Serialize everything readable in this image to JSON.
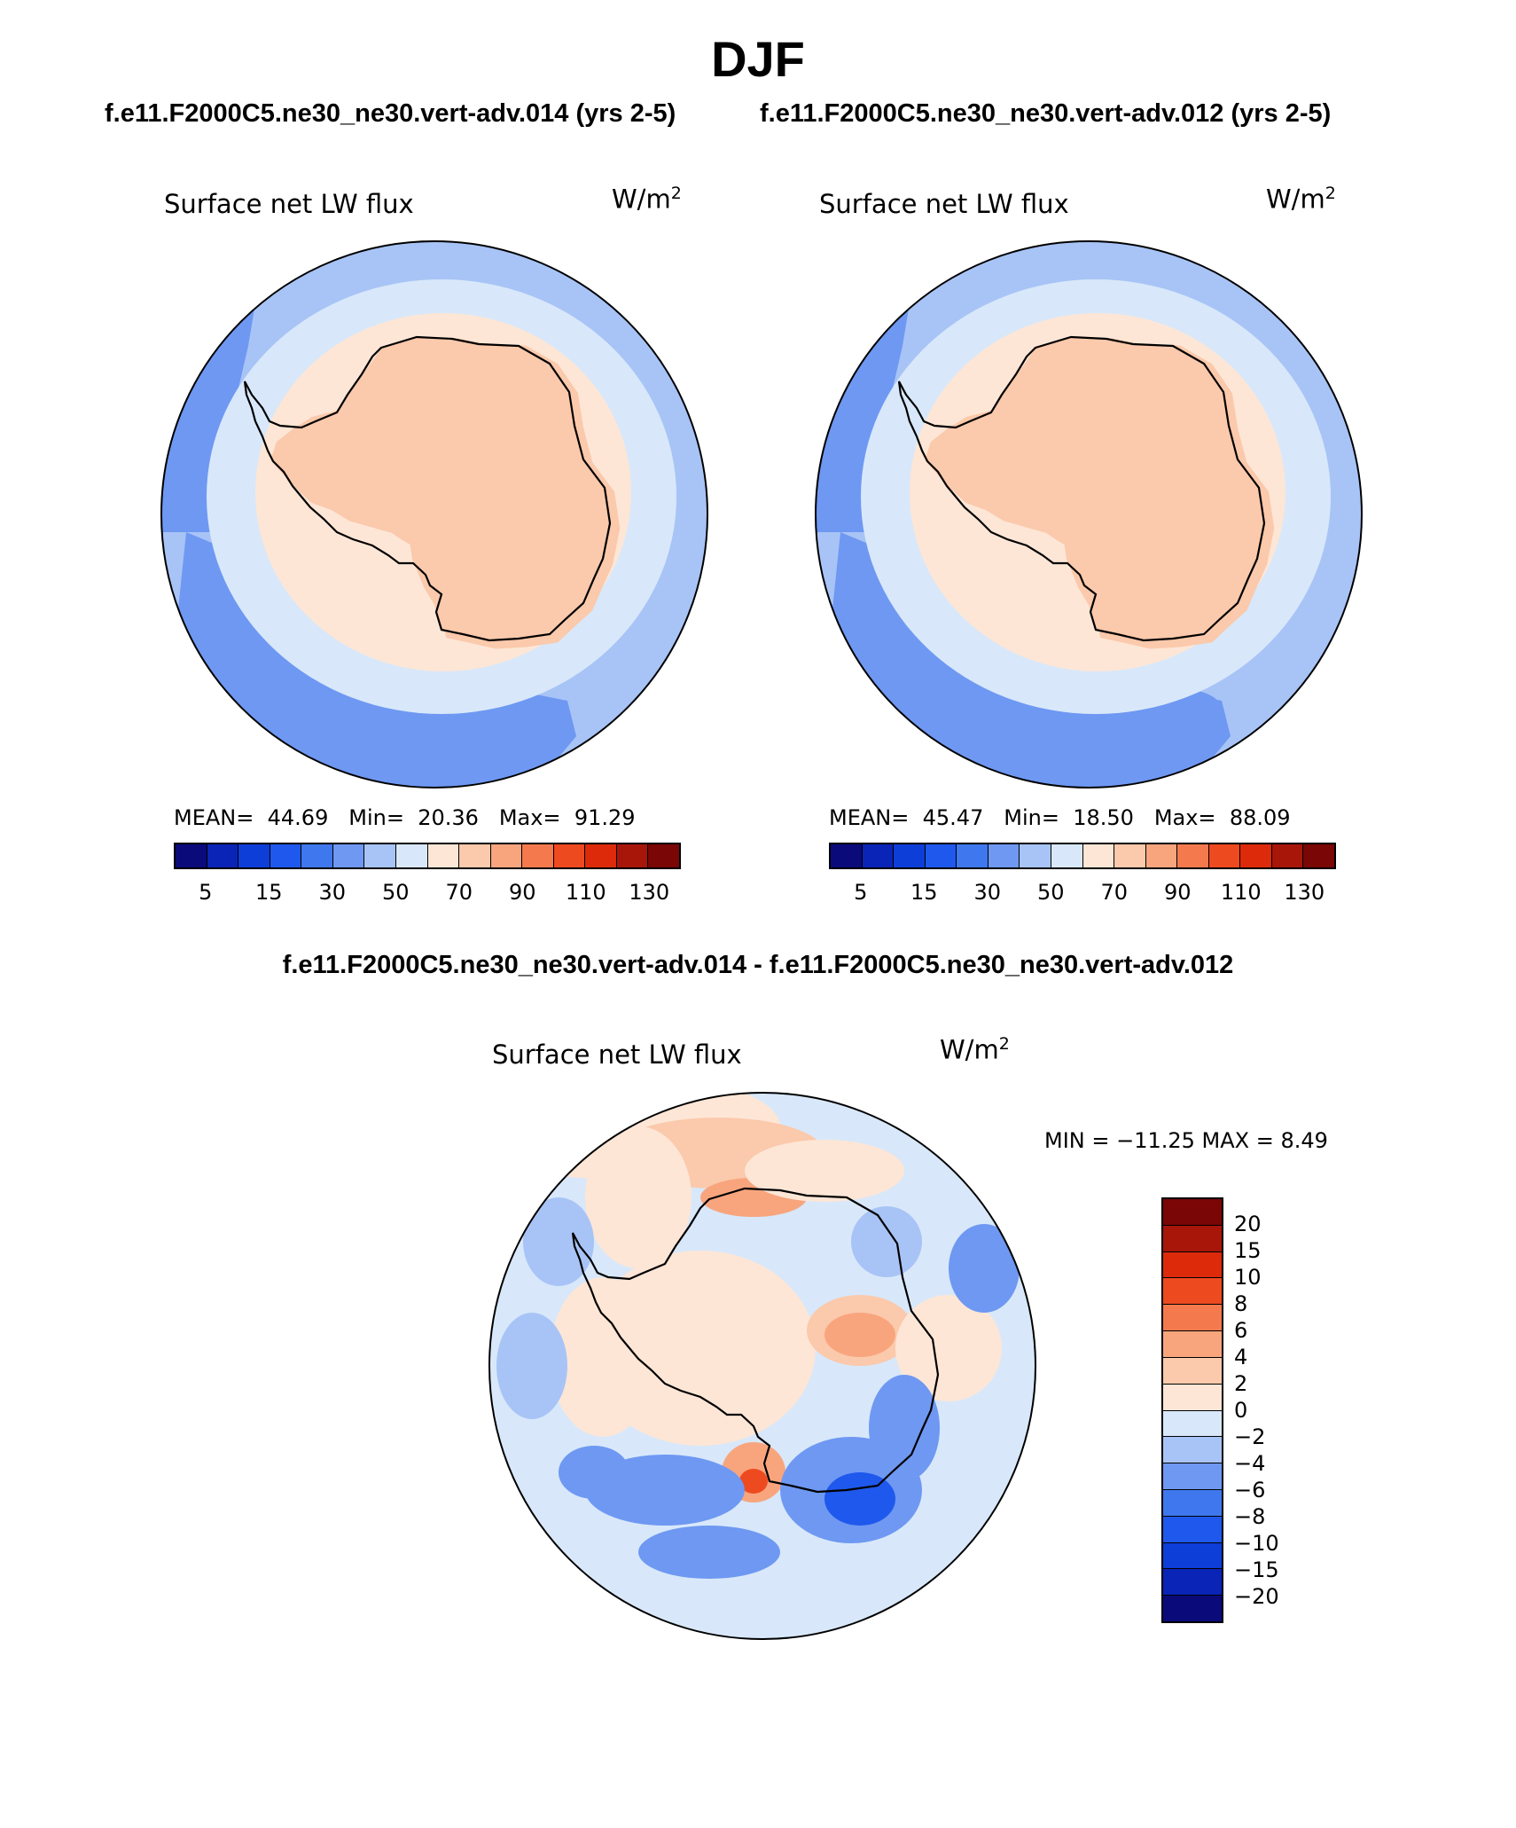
{
  "title": "DJF",
  "case_titles": [
    "f.e11.F2000C5.ne30_ne30.vert-adv.014 (yrs 2-5)",
    "f.e11.F2000C5.ne30_ne30.vert-adv.012 (yrs 2-5)"
  ],
  "diff_title": "f.e11.F2000C5.ne30_ne30.vert-adv.014 - f.e11.F2000C5.ne30_ne30.vert-adv.012",
  "chart_data": [
    {
      "type": "heatmap",
      "projection": "south-polar-stereographic",
      "title": "Surface net LW flux",
      "units_base": "W/m",
      "units_exp": "2",
      "stats": {
        "mean_label": "MEAN=",
        "mean": "44.69",
        "min_label": "Min=",
        "min": "20.36",
        "max_label": "Max=",
        "max": "91.29"
      },
      "colorbar": {
        "orientation": "horizontal",
        "colors": [
          "#0a0a7a",
          "#0a24b8",
          "#0d3ed8",
          "#1f58ec",
          "#3f78ee",
          "#6e98f2",
          "#a8c4f6",
          "#d8e8fa",
          "#fde6d6",
          "#fbc9ab",
          "#f8a57e",
          "#f47a4e",
          "#ee4a20",
          "#dc2a0a",
          "#a8160a",
          "#7a0606"
        ],
        "tick_labels": [
          "5",
          "15",
          "30",
          "50",
          "70",
          "90",
          "110",
          "130"
        ]
      },
      "regions": {
        "ocean_outer": 40,
        "ocean_inner": 50,
        "coastal_band": 60,
        "continent": 75,
        "west_ocean_low": 30
      }
    },
    {
      "type": "heatmap",
      "projection": "south-polar-stereographic",
      "title": "Surface net LW flux",
      "units_base": "W/m",
      "units_exp": "2",
      "stats": {
        "mean_label": "MEAN=",
        "mean": "45.47",
        "min_label": "Min=",
        "min": "18.50",
        "max_label": "Max=",
        "max": "88.09"
      },
      "colorbar": {
        "orientation": "horizontal",
        "colors": [
          "#0a0a7a",
          "#0a24b8",
          "#0d3ed8",
          "#1f58ec",
          "#3f78ee",
          "#6e98f2",
          "#a8c4f6",
          "#d8e8fa",
          "#fde6d6",
          "#fbc9ab",
          "#f8a57e",
          "#f47a4e",
          "#ee4a20",
          "#dc2a0a",
          "#a8160a",
          "#7a0606"
        ],
        "tick_labels": [
          "5",
          "15",
          "30",
          "50",
          "70",
          "90",
          "110",
          "130"
        ]
      },
      "regions": {
        "ocean_outer": 40,
        "ocean_inner": 50,
        "coastal_band": 60,
        "continent": 75,
        "west_ocean_low": 30
      }
    },
    {
      "type": "heatmap",
      "projection": "south-polar-stereographic",
      "title": "Surface net LW flux",
      "units_base": "W/m",
      "units_exp": "2",
      "stats_line": "MIN = −11.25 MAX =    8.49",
      "colorbar": {
        "orientation": "vertical",
        "colors": [
          "#7a0606",
          "#a8160a",
          "#dc2a0a",
          "#ee4a20",
          "#f47a4e",
          "#f8a57e",
          "#fbc9ab",
          "#fde6d6",
          "#d8e8fa",
          "#a8c4f6",
          "#6e98f2",
          "#3f78ee",
          "#1f58ec",
          "#0d3ed8",
          "#0a24b8",
          "#0a0a7a"
        ],
        "tick_labels": [
          "20",
          "15",
          "10",
          "8",
          "6",
          "4",
          "2",
          "0",
          "−2",
          "−4",
          "−6",
          "−8",
          "−10",
          "−15",
          "−20"
        ]
      }
    }
  ]
}
